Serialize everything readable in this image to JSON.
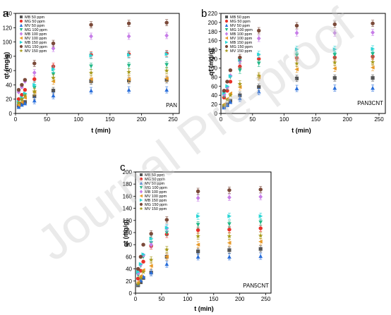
{
  "figure": {
    "watermark": "Journal Pre-proof"
  },
  "chart_data": [
    {
      "type": "scatter",
      "panel_label": "a",
      "tag": "PAN",
      "xlabel": "t (min)",
      "ylabel": "qt (mg/g)",
      "xlim": [
        0,
        260
      ],
      "ylim": [
        0,
        140
      ],
      "xticks": [
        0,
        50,
        100,
        150,
        200,
        250
      ],
      "yticks": [
        0,
        20,
        40,
        60,
        80,
        100,
        120,
        140
      ],
      "legend_position": "top-left",
      "x": [
        5,
        10,
        15,
        30,
        60,
        120,
        180,
        240
      ],
      "series": [
        {
          "name": "MB 50 ppm",
          "color": "#555555",
          "marker": "square",
          "values": [
            11,
            14,
            16,
            24,
            32,
            45,
            46,
            47
          ]
        },
        {
          "name": "MG 50 ppm",
          "color": "#e8312a",
          "marker": "circle",
          "values": [
            20,
            26,
            33,
            48,
            66,
            82,
            83,
            84
          ]
        },
        {
          "name": "MV 50 ppm",
          "color": "#2a6fdb",
          "marker": "triangle-up",
          "values": [
            9,
            12,
            14,
            18,
            25,
            32,
            33,
            33
          ]
        },
        {
          "name": "MG 100 ppm",
          "color": "#22b888",
          "marker": "triangle-down",
          "values": [
            14,
            19,
            26,
            36,
            55,
            66,
            67,
            68
          ]
        },
        {
          "name": "MB 100 ppm",
          "color": "#c77ee8",
          "marker": "diamond",
          "values": [
            30,
            37,
            45,
            57,
            91,
            108,
            108,
            109
          ]
        },
        {
          "name": "MV 100 ppm",
          "color": "#e89a2a",
          "marker": "triangle-left",
          "values": [
            12,
            16,
            22,
            30,
            45,
            48,
            48,
            49
          ]
        },
        {
          "name": "MB 150 ppm",
          "color": "#2ad6d6",
          "marker": "triangle-right",
          "values": [
            16,
            22,
            28,
            40,
            62,
            81,
            82,
            83
          ]
        },
        {
          "name": "MG 150 ppm",
          "color": "#7b4a3a",
          "marker": "circle",
          "values": [
            33,
            40,
            47,
            70,
            98,
            124,
            126,
            127
          ]
        },
        {
          "name": "MV 150 ppm",
          "color": "#a69a1a",
          "marker": "star",
          "values": [
            15,
            20,
            25,
            31,
            50,
            57,
            58,
            60
          ]
        }
      ]
    },
    {
      "type": "scatter",
      "panel_label": "b",
      "tag": "PAN3CNT",
      "xlabel": "t (min)",
      "ylabel": "qt (mg/g)",
      "xlim": [
        0,
        260
      ],
      "ylim": [
        0,
        220
      ],
      "xticks": [
        0,
        50,
        100,
        150,
        200,
        250
      ],
      "yticks": [
        0,
        20,
        40,
        60,
        80,
        100,
        120,
        140,
        160,
        180,
        200,
        220
      ],
      "legend_position": "top-left",
      "x": [
        5,
        10,
        15,
        30,
        60,
        120,
        180,
        240
      ],
      "series": [
        {
          "name": "MB 50 ppm",
          "color": "#555555",
          "marker": "square",
          "values": [
            14,
            20,
            28,
            40,
            58,
            77,
            78,
            78
          ]
        },
        {
          "name": "MG 50 ppm",
          "color": "#e8312a",
          "marker": "circle",
          "values": [
            35,
            50,
            70,
            103,
            120,
            122,
            123,
            125
          ]
        },
        {
          "name": "MV 50 ppm",
          "color": "#2a6fdb",
          "marker": "triangle-up",
          "values": [
            13,
            18,
            25,
            33,
            48,
            55,
            56,
            56
          ]
        },
        {
          "name": "MG 100 ppm",
          "color": "#22b888",
          "marker": "triangle-down",
          "values": [
            38,
            55,
            80,
            95,
            110,
            128,
            129,
            131
          ]
        },
        {
          "name": "MB 100 ppm",
          "color": "#c77ee8",
          "marker": "diamond",
          "values": [
            42,
            58,
            83,
            115,
            165,
            177,
            177,
            178
          ]
        },
        {
          "name": "MV 100 ppm",
          "color": "#e89a2a",
          "marker": "triangle-left",
          "values": [
            20,
            32,
            44,
            58,
            80,
            97,
            99,
            101
          ]
        },
        {
          "name": "MB 150 ppm",
          "color": "#2ad6d6",
          "marker": "triangle-right",
          "values": [
            45,
            60,
            82,
            118,
            130,
            141,
            141,
            142
          ]
        },
        {
          "name": "MG 150 ppm",
          "color": "#7b4a3a",
          "marker": "circle",
          "values": [
            50,
            70,
            95,
            123,
            182,
            193,
            196,
            198
          ]
        },
        {
          "name": "MV 150 ppm",
          "color": "#a69a1a",
          "marker": "star",
          "values": [
            18,
            30,
            40,
            65,
            83,
            110,
            112,
            113
          ]
        }
      ]
    },
    {
      "type": "scatter",
      "panel_label": "c",
      "tag": "PAN5CNT",
      "xlabel": "t (min)",
      "ylabel": "qt (mg/g)",
      "xlim": [
        0,
        260
      ],
      "ylim": [
        0,
        200
      ],
      "xticks": [
        0,
        50,
        100,
        150,
        200,
        250
      ],
      "yticks": [
        0,
        20,
        40,
        60,
        80,
        100,
        120,
        140,
        160,
        180,
        200
      ],
      "legend_position": "top-left",
      "x": [
        5,
        10,
        15,
        30,
        60,
        120,
        180,
        240
      ],
      "series": [
        {
          "name": "MB 50 ppm",
          "color": "#555555",
          "marker": "square",
          "values": [
            13,
            18,
            25,
            34,
            60,
            69,
            71,
            73
          ]
        },
        {
          "name": "MG 50 ppm",
          "color": "#e8312a",
          "marker": "circle",
          "values": [
            24,
            37,
            52,
            78,
            97,
            104,
            105,
            107
          ]
        },
        {
          "name": "MV 50 ppm",
          "color": "#2a6fdb",
          "marker": "triangle-up",
          "values": [
            15,
            21,
            27,
            34,
            48,
            60,
            60,
            61
          ]
        },
        {
          "name": "MG 100 ppm",
          "color": "#22b888",
          "marker": "triangle-down",
          "values": [
            30,
            45,
            60,
            83,
            100,
            113,
            114,
            117
          ]
        },
        {
          "name": "MB 100 ppm",
          "color": "#c77ee8",
          "marker": "diamond",
          "values": [
            33,
            47,
            63,
            80,
            107,
            157,
            158,
            159
          ]
        },
        {
          "name": "MV 100 ppm",
          "color": "#e89a2a",
          "marker": "triangle-left",
          "values": [
            18,
            28,
            38,
            45,
            60,
            80,
            83,
            85
          ]
        },
        {
          "name": "MB 150 ppm",
          "color": "#2ad6d6",
          "marker": "triangle-right",
          "values": [
            35,
            48,
            64,
            90,
            108,
            127,
            127,
            127
          ]
        },
        {
          "name": "MG 150 ppm",
          "color": "#7b4a3a",
          "marker": "circle",
          "values": [
            40,
            60,
            80,
            98,
            121,
            168,
            170,
            171
          ]
        },
        {
          "name": "MV 150 ppm",
          "color": "#a69a1a",
          "marker": "star",
          "values": [
            15,
            25,
            35,
            55,
            72,
            94,
            94,
            95
          ]
        }
      ]
    }
  ]
}
